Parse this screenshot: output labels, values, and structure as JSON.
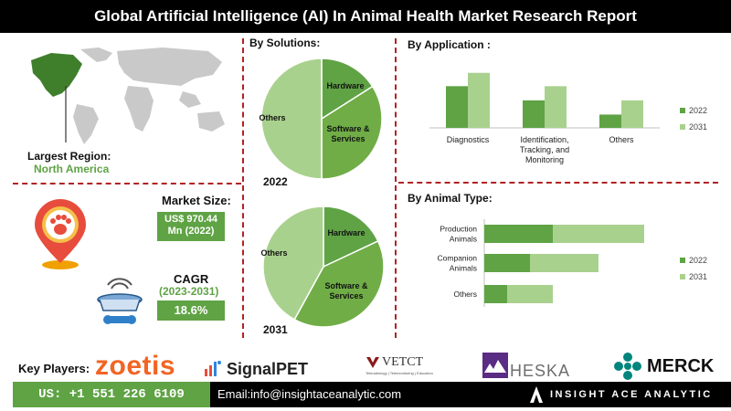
{
  "title": "Global Artificial Intelligence (AI) In Animal Health Market Research Report",
  "region": {
    "label": "Largest Region:",
    "value": "North America"
  },
  "market_size": {
    "label": "Market Size:",
    "value_line1": "US$ 970.44",
    "value_line2": "Mn (2022)"
  },
  "cagr": {
    "label": "CAGR",
    "period": "(2023-2031)",
    "value": "18.6%"
  },
  "key_players": {
    "label": "Key Players:",
    "logos": [
      "zoetis",
      "SignalPET",
      "VETCT",
      "HESKA",
      "MERCK"
    ],
    "vetct_tagline": "Teleradiology | Telemonitoring | Education"
  },
  "footer": {
    "phone": "US: +1 551 226 6109",
    "email": "Email:info@insightaceanalytic.com",
    "brand": "INSIGHT ACE ANALYTIC"
  },
  "colors": {
    "dark_green": "#5fa345",
    "mid_green": "#70ad47",
    "light_green": "#a9d18e",
    "title_bg": "#000000",
    "divider": "#b22222"
  },
  "chart_data": [
    {
      "type": "pie",
      "title": "By Solutions:",
      "year_label": "2022",
      "labels": [
        "Hardware",
        "Software & Services",
        "Others"
      ],
      "values": [
        16,
        34,
        50
      ],
      "colors": [
        "#5fa345",
        "#70ad47",
        "#a9d18e"
      ]
    },
    {
      "type": "pie",
      "title": "",
      "year_label": "2031",
      "labels": [
        "Hardware",
        "Software &Services",
        "Others"
      ],
      "values": [
        18,
        40,
        42
      ],
      "colors": [
        "#5fa345",
        "#70ad47",
        "#a9d18e"
      ]
    },
    {
      "type": "bar",
      "title": "By Application :",
      "categories": [
        "Diagnostics",
        "Identification, Tracking, and Monitoring",
        "Others"
      ],
      "category_lines": [
        [
          "Diagnostics"
        ],
        [
          "Identification,",
          "Tracking, and",
          "Monitoring"
        ],
        [
          "Others"
        ]
      ],
      "series": [
        {
          "name": "2022",
          "values": [
            47,
            31,
            15
          ],
          "color": "#5fa345"
        },
        {
          "name": "2031",
          "values": [
            62,
            47,
            31
          ],
          "color": "#a9d18e"
        }
      ],
      "ylim": [
        0,
        70
      ],
      "grid": false,
      "legend": "right"
    },
    {
      "type": "bar",
      "orientation": "horizontal",
      "stacked": true,
      "title": "By Animal Type:",
      "categories": [
        "Production Animals",
        "Companion Animals",
        "Others"
      ],
      "category_lines": [
        [
          "Production",
          "Animals"
        ],
        [
          "Companion",
          "Animals"
        ],
        [
          "Others"
        ]
      ],
      "series": [
        {
          "name": "2022",
          "values": [
            30,
            20,
            10
          ],
          "color": "#5fa345"
        },
        {
          "name": "2031",
          "values": [
            40,
            30,
            20
          ],
          "color": "#a9d18e"
        }
      ],
      "xlim": [
        0,
        80
      ],
      "grid": false,
      "legend": "right"
    }
  ]
}
